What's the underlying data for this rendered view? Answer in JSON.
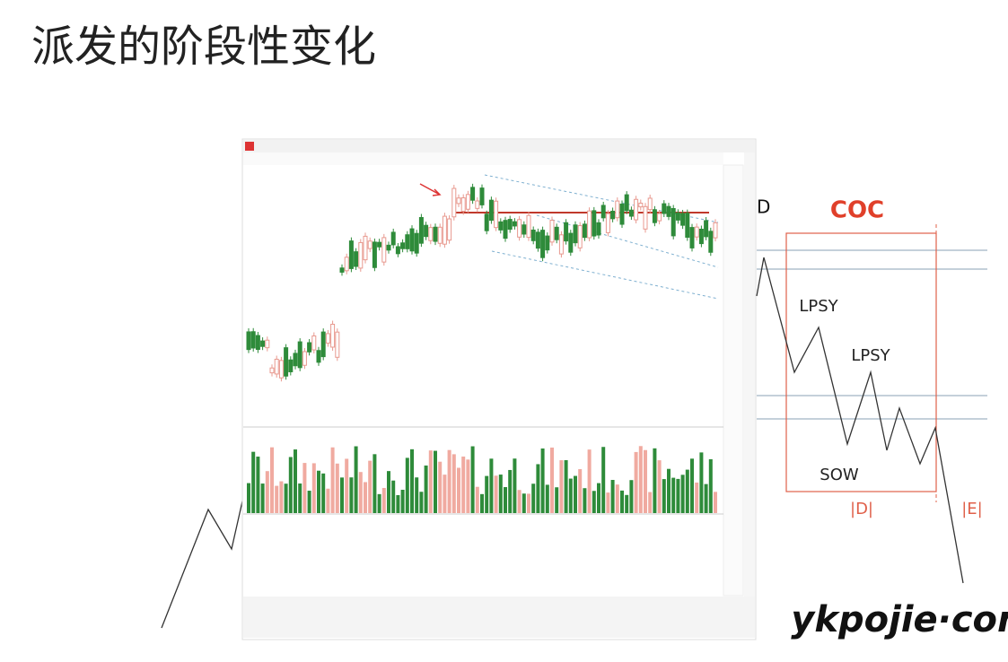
{
  "title": "派发的阶段性变化",
  "diagram": {
    "phase_label": "D",
    "coc": "COC",
    "lpsy_1": "LPSY",
    "lpsy_2": "LPSY",
    "sow": "SOW",
    "phase_d": "|D|",
    "phase_e": "|E|"
  },
  "watermark": "ykpojie·com"
}
